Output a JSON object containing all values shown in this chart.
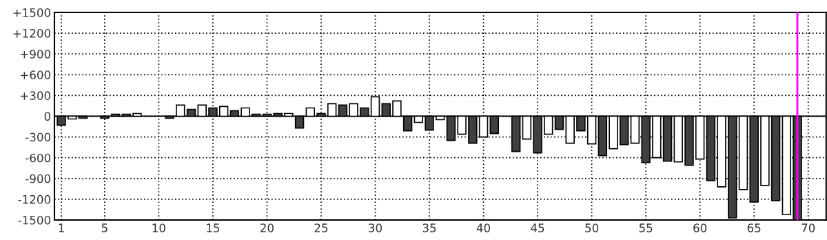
{
  "chart_data": {
    "type": "bar",
    "x": [
      1,
      2,
      3,
      4,
      5,
      6,
      7,
      8,
      9,
      10,
      11,
      12,
      13,
      14,
      15,
      16,
      17,
      18,
      19,
      20,
      21,
      22,
      23,
      24,
      25,
      26,
      27,
      28,
      29,
      30,
      31,
      32,
      33,
      34,
      35,
      36,
      37,
      38,
      39,
      40,
      41,
      42,
      43,
      44,
      45,
      46,
      47,
      48,
      49,
      50,
      51,
      52,
      53,
      54,
      55,
      56,
      57,
      58,
      59,
      60,
      61,
      62,
      63,
      64,
      65,
      66,
      67,
      68,
      69
    ],
    "values": [
      -130,
      -40,
      -30,
      null,
      -30,
      30,
      30,
      40,
      null,
      null,
      -30,
      160,
      100,
      160,
      120,
      140,
      80,
      120,
      30,
      30,
      40,
      40,
      -170,
      120,
      40,
      180,
      160,
      180,
      120,
      280,
      180,
      220,
      -210,
      -90,
      -200,
      -50,
      -350,
      -260,
      -390,
      -300,
      -250,
      null,
      -510,
      -330,
      -530,
      -260,
      -190,
      -390,
      -210,
      -400,
      -570,
      -470,
      -410,
      -390,
      -670,
      -600,
      -650,
      -660,
      -710,
      -620,
      -930,
      -1020,
      -1470,
      -1060,
      -1240,
      -1000,
      -1220,
      -1420,
      -1500
    ],
    "colors": [
      "#404040",
      "#ffffff",
      "#404040",
      null,
      "#404040",
      "#404040",
      "#404040",
      "#ffffff",
      null,
      null,
      "#404040",
      "#ffffff",
      "#404040",
      "#ffffff",
      "#404040",
      "#ffffff",
      "#404040",
      "#ffffff",
      "#404040",
      "#404040",
      "#404040",
      "#ffffff",
      "#404040",
      "#ffffff",
      "#404040",
      "#ffffff",
      "#404040",
      "#ffffff",
      "#404040",
      "#ffffff",
      "#404040",
      "#ffffff",
      "#404040",
      "#ffffff",
      "#404040",
      "#ffffff",
      "#404040",
      "#ffffff",
      "#404040",
      "#ffffff",
      "#404040",
      null,
      "#404040",
      "#ffffff",
      "#404040",
      "#ffffff",
      "#404040",
      "#ffffff",
      "#404040",
      "#ffffff",
      "#404040",
      "#ffffff",
      "#404040",
      "#ffffff",
      "#404040",
      "#ffffff",
      "#404040",
      "#ffffff",
      "#404040",
      "#ffffff",
      "#404040",
      "#ffffff",
      "#404040",
      "#ffffff",
      "#404040",
      "#ffffff",
      "#404040",
      "#ffffff",
      "#404040"
    ],
    "xlim": [
      0.36,
      71.66
    ],
    "xticks": [
      1,
      5,
      10,
      15,
      20,
      25,
      30,
      35,
      40,
      45,
      50,
      55,
      60,
      65,
      70
    ],
    "ylim": [
      -1500,
      1500
    ],
    "yticks": [
      {
        "value": 1500,
        "label": "+1500"
      },
      {
        "value": 1200,
        "label": "+1200"
      },
      {
        "value": 900,
        "label": "+900"
      },
      {
        "value": 600,
        "label": "+600"
      },
      {
        "value": 300,
        "label": "+300"
      },
      0,
      -300,
      -600,
      -900,
      -1200,
      -1500
    ],
    "ref_lines": [
      {
        "axis": "y",
        "value": 0,
        "color": "#000000",
        "line_style": "solid"
      },
      {
        "axis": "x",
        "value": 69,
        "color": "#ff00ff",
        "line_style": "solid"
      }
    ],
    "grid": true
  }
}
